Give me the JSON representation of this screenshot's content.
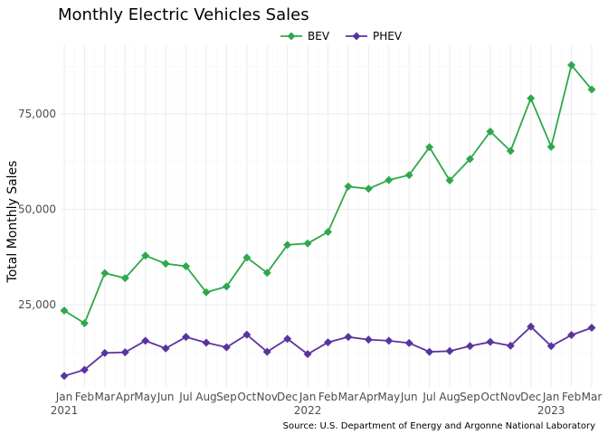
{
  "chart_data": {
    "type": "line",
    "title": "Monthly Electric Vehicles Sales",
    "ylabel": "Total Monthly Sales",
    "xlabel": "",
    "caption": "Source: U.S. Department of Energy and Argonne National Laboratory",
    "legend_position": "top",
    "grid": true,
    "ylim": [
      3500,
      93000
    ],
    "yticks": [
      25000,
      50000,
      75000
    ],
    "ytick_labels": [
      "25,000",
      "50,000",
      "75,000"
    ],
    "x": [
      "2021-01",
      "2021-02",
      "2021-03",
      "2021-04",
      "2021-05",
      "2021-06",
      "2021-07",
      "2021-08",
      "2021-09",
      "2021-10",
      "2021-11",
      "2021-12",
      "2022-01",
      "2022-02",
      "2022-03",
      "2022-04",
      "2022-05",
      "2022-06",
      "2022-07",
      "2022-08",
      "2022-09",
      "2022-10",
      "2022-11",
      "2022-12",
      "2023-01",
      "2023-02",
      "2023-03"
    ],
    "xtick_labels": [
      "Jan",
      "Feb",
      "Mar",
      "Apr",
      "May",
      "Jun",
      "Jul",
      "Aug",
      "Sep",
      "Oct",
      "Nov",
      "Dec",
      "Jan",
      "Feb",
      "Mar",
      "Apr",
      "May",
      "Jun",
      "Jul",
      "Aug",
      "Sep",
      "Oct",
      "Nov",
      "Dec",
      "Jan",
      "Feb",
      "Mar"
    ],
    "year_labels": [
      {
        "index": 0,
        "label": "2021"
      },
      {
        "index": 12,
        "label": "2022"
      },
      {
        "index": 24,
        "label": "2023"
      }
    ],
    "series": [
      {
        "name": "BEV",
        "color": "#2ea84c",
        "values": [
          23500,
          20200,
          33300,
          32000,
          37900,
          35800,
          35100,
          28300,
          29800,
          37400,
          33400,
          40700,
          41100,
          44100,
          56000,
          55400,
          57700,
          59000,
          66300,
          57600,
          63200,
          70400,
          65300,
          79100,
          66400,
          87800,
          81400
        ]
      },
      {
        "name": "PHEV",
        "color": "#5b33a0",
        "values": [
          6400,
          8000,
          12400,
          12600,
          15600,
          13600,
          16600,
          15100,
          13900,
          17200,
          12700,
          16100,
          12100,
          15200,
          16600,
          15900,
          15600,
          15000,
          12700,
          12900,
          14200,
          15300,
          14300,
          19300,
          14200,
          17100,
          19000
        ]
      }
    ]
  }
}
